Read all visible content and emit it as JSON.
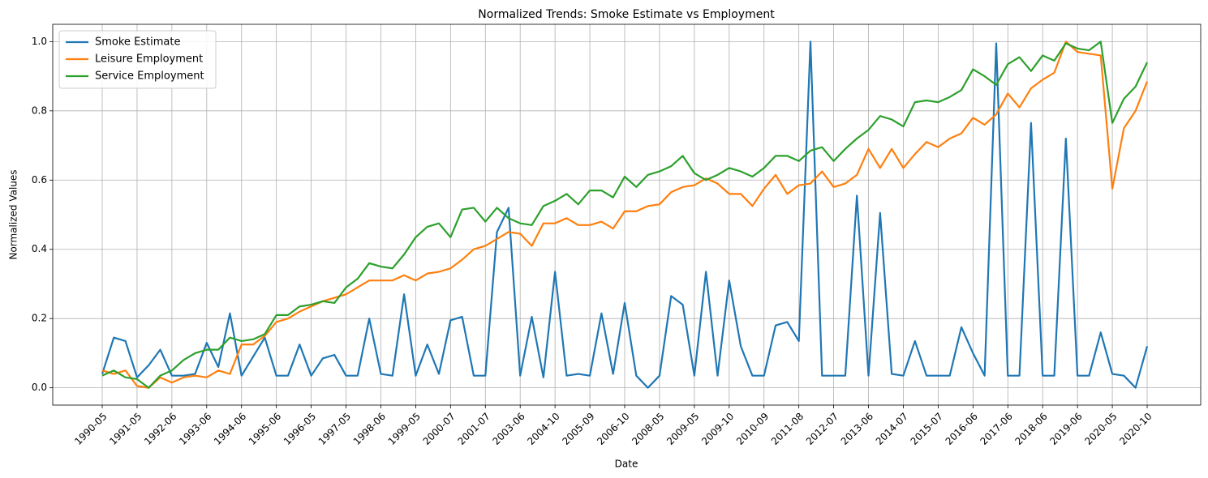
{
  "chart_data": {
    "type": "line",
    "title": "Normalized Trends: Smoke Estimate vs Employment",
    "x_label": "Date",
    "y_label": "Normalized Values",
    "categories": [
      "1990-05",
      null,
      null,
      "1991-05",
      null,
      null,
      "1992-06",
      null,
      null,
      "1993-06",
      null,
      null,
      "1994-06",
      null,
      null,
      "1995-06",
      null,
      null,
      "1996-05",
      null,
      null,
      "1997-05",
      null,
      null,
      "1998-06",
      null,
      null,
      "1999-05",
      null,
      null,
      "2000-07",
      null,
      null,
      "2001-07",
      null,
      null,
      "2003-06",
      null,
      null,
      "2004-10",
      null,
      null,
      "2005-09",
      null,
      null,
      "2006-10",
      null,
      null,
      "2008-05",
      null,
      null,
      "2009-05",
      null,
      null,
      "2009-10",
      null,
      null,
      "2010-09",
      null,
      null,
      "2011-08",
      null,
      null,
      "2012-07",
      null,
      null,
      "2013-06",
      null,
      null,
      "2014-07",
      null,
      null,
      "2015-07",
      null,
      null,
      "2016-06",
      null,
      null,
      "2017-06",
      null,
      null,
      "2018-06",
      null,
      null,
      "2019-06",
      null,
      null,
      "2020-05",
      null,
      null,
      "2020-10"
    ],
    "series": [
      {
        "name": "Smoke Estimate",
        "color": "#1f77b4",
        "values": [
          0.04,
          0.145,
          0.135,
          0.03,
          0.065,
          0.11,
          0.035,
          0.035,
          0.04,
          0.13,
          0.06,
          0.215,
          0.035,
          0.09,
          0.145,
          0.035,
          0.035,
          0.125,
          0.035,
          0.085,
          0.095,
          0.035,
          0.035,
          0.2,
          0.04,
          0.035,
          0.27,
          0.035,
          0.125,
          0.04,
          0.195,
          0.205,
          0.035,
          0.035,
          0.45,
          0.52,
          0.035,
          0.205,
          0.03,
          0.335,
          0.035,
          0.04,
          0.035,
          0.215,
          0.04,
          0.245,
          0.035,
          0.0,
          0.035,
          0.265,
          0.24,
          0.035,
          0.335,
          0.035,
          0.31,
          0.12,
          0.035,
          0.035,
          0.18,
          0.19,
          0.135,
          1.0,
          0.035,
          0.035,
          0.035,
          0.555,
          0.035,
          0.505,
          0.04,
          0.035,
          0.135,
          0.035,
          0.035,
          0.035,
          0.175,
          0.1,
          0.035,
          0.995,
          0.035,
          0.035,
          0.765,
          0.035,
          0.035,
          0.72,
          0.035,
          0.035,
          0.16,
          0.04,
          0.035,
          0.0,
          0.12
        ]
      },
      {
        "name": "Leisure Employment",
        "color": "#ff7f0e",
        "values": [
          0.05,
          0.04,
          0.05,
          0.005,
          0.0,
          0.03,
          0.015,
          0.03,
          0.035,
          0.03,
          0.05,
          0.04,
          0.125,
          0.125,
          0.15,
          0.19,
          0.2,
          0.22,
          0.235,
          0.25,
          0.26,
          0.27,
          0.29,
          0.31,
          0.31,
          0.31,
          0.325,
          0.31,
          0.33,
          0.335,
          0.345,
          0.37,
          0.4,
          0.41,
          0.43,
          0.45,
          0.445,
          0.41,
          0.475,
          0.475,
          0.49,
          0.47,
          0.47,
          0.48,
          0.46,
          0.51,
          0.51,
          0.525,
          0.53,
          0.565,
          0.58,
          0.585,
          0.605,
          0.59,
          0.56,
          0.56,
          0.525,
          0.575,
          0.615,
          0.56,
          0.585,
          0.59,
          0.625,
          0.58,
          0.59,
          0.615,
          0.69,
          0.635,
          0.69,
          0.635,
          0.675,
          0.71,
          0.695,
          0.72,
          0.735,
          0.78,
          0.76,
          0.79,
          0.85,
          0.81,
          0.865,
          0.89,
          0.91,
          1.0,
          0.97,
          0.965,
          0.96,
          0.575,
          0.75,
          0.8,
          0.885
        ]
      },
      {
        "name": "Service Employment",
        "color": "#2ca02c",
        "values": [
          0.035,
          0.05,
          0.03,
          0.025,
          0.0,
          0.035,
          0.05,
          0.08,
          0.1,
          0.11,
          0.11,
          0.145,
          0.135,
          0.14,
          0.155,
          0.21,
          0.21,
          0.235,
          0.24,
          0.25,
          0.245,
          0.29,
          0.315,
          0.36,
          0.35,
          0.345,
          0.385,
          0.435,
          0.465,
          0.475,
          0.435,
          0.515,
          0.52,
          0.48,
          0.52,
          0.49,
          0.475,
          0.47,
          0.525,
          0.54,
          0.56,
          0.53,
          0.57,
          0.57,
          0.55,
          0.61,
          0.58,
          0.615,
          0.625,
          0.64,
          0.67,
          0.62,
          0.6,
          0.615,
          0.635,
          0.625,
          0.61,
          0.635,
          0.67,
          0.67,
          0.655,
          0.685,
          0.695,
          0.655,
          0.69,
          0.72,
          0.745,
          0.785,
          0.775,
          0.755,
          0.825,
          0.83,
          0.825,
          0.84,
          0.86,
          0.92,
          0.9,
          0.875,
          0.935,
          0.955,
          0.915,
          0.96,
          0.945,
          0.995,
          0.98,
          0.975,
          1.0,
          0.765,
          0.835,
          0.87,
          0.94
        ]
      }
    ],
    "ylim": [
      -0.05,
      1.05
    ],
    "yticks": [
      {
        "value": 0,
        "label": "0.0"
      },
      0.2,
      0.4,
      0.6,
      0.8,
      {
        "value": 1,
        "label": "1.0"
      }
    ],
    "grid": true,
    "legend": "upper left"
  }
}
